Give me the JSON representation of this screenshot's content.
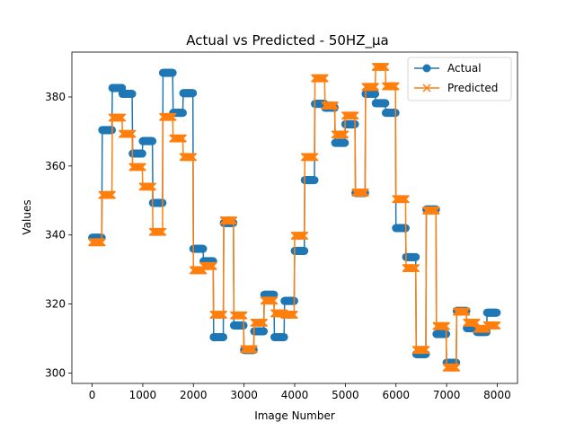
{
  "chart_data": {
    "type": "line",
    "title": "Actual vs Predicted - 50HZ_µa",
    "xlabel": "Image Number",
    "ylabel": "Values",
    "xlim": [
      -400,
      8400
    ],
    "ylim": [
      297,
      393
    ],
    "x_ticks": [
      "0",
      "1000",
      "2000",
      "3000",
      "4000",
      "5000",
      "6000",
      "7000",
      "8000"
    ],
    "y_ticks": [
      "300",
      "320",
      "340",
      "360",
      "380"
    ],
    "legend_position": "upper-right",
    "grid": false,
    "segments": [
      {
        "x0": 0,
        "x1": 200,
        "actual": 339.2,
        "predicted": 337.9
      },
      {
        "x0": 200,
        "x1": 400,
        "actual": 370.4,
        "predicted": 351.6
      },
      {
        "x0": 400,
        "x1": 600,
        "actual": 382.6,
        "predicted": 374.0
      },
      {
        "x0": 600,
        "x1": 800,
        "actual": 380.9,
        "predicted": 369.3
      },
      {
        "x0": 800,
        "x1": 1000,
        "actual": 363.6,
        "predicted": 359.7
      },
      {
        "x0": 1000,
        "x1": 1200,
        "actual": 367.2,
        "predicted": 354.0
      },
      {
        "x0": 1200,
        "x1": 1400,
        "actual": 349.3,
        "predicted": 340.9
      },
      {
        "x0": 1400,
        "x1": 1600,
        "actual": 387.0,
        "predicted": 374.2
      },
      {
        "x0": 1600,
        "x1": 1800,
        "actual": 375.4,
        "predicted": 368.0
      },
      {
        "x0": 1800,
        "x1": 2000,
        "actual": 381.1,
        "predicted": 362.6
      },
      {
        "x0": 2000,
        "x1": 2200,
        "actual": 336.0,
        "predicted": 329.8
      },
      {
        "x0": 2200,
        "x1": 2400,
        "actual": 332.4,
        "predicted": 331.0
      },
      {
        "x0": 2400,
        "x1": 2600,
        "actual": 310.4,
        "predicted": 316.9
      },
      {
        "x0": 2600,
        "x1": 2800,
        "actual": 343.5,
        "predicted": 344.2
      },
      {
        "x0": 2800,
        "x1": 3000,
        "actual": 313.8,
        "predicted": 316.7
      },
      {
        "x0": 3000,
        "x1": 3200,
        "actual": 306.7,
        "predicted": 306.9
      },
      {
        "x0": 3200,
        "x1": 3400,
        "actual": 312.1,
        "predicted": 314.6
      },
      {
        "x0": 3400,
        "x1": 3600,
        "actual": 322.7,
        "predicted": 321.0
      },
      {
        "x0": 3600,
        "x1": 3800,
        "actual": 310.4,
        "predicted": 317.3
      },
      {
        "x0": 3800,
        "x1": 4000,
        "actual": 320.9,
        "predicted": 316.9
      },
      {
        "x0": 4000,
        "x1": 4200,
        "actual": 335.4,
        "predicted": 339.8
      },
      {
        "x0": 4200,
        "x1": 4400,
        "actual": 355.9,
        "predicted": 362.6
      },
      {
        "x0": 4400,
        "x1": 4600,
        "actual": 378.0,
        "predicted": 385.4
      },
      {
        "x0": 4600,
        "x1": 4800,
        "actual": 376.9,
        "predicted": 377.5
      },
      {
        "x0": 4800,
        "x1": 5000,
        "actual": 366.7,
        "predicted": 369.1
      },
      {
        "x0": 5000,
        "x1": 5200,
        "actual": 372.1,
        "predicted": 374.6
      },
      {
        "x0": 5200,
        "x1": 5400,
        "actual": 352.2,
        "predicted": 352.3
      },
      {
        "x0": 5400,
        "x1": 5600,
        "actual": 380.9,
        "predicted": 382.9
      },
      {
        "x0": 5600,
        "x1": 5800,
        "actual": 378.2,
        "predicted": 388.7
      },
      {
        "x0": 5800,
        "x1": 6000,
        "actual": 375.4,
        "predicted": 383.1
      },
      {
        "x0": 6000,
        "x1": 6200,
        "actual": 342.0,
        "predicted": 350.4
      },
      {
        "x0": 6200,
        "x1": 6400,
        "actual": 333.6,
        "predicted": 330.4
      },
      {
        "x0": 6400,
        "x1": 6600,
        "actual": 305.5,
        "predicted": 306.7
      },
      {
        "x0": 6600,
        "x1": 6800,
        "actual": 347.4,
        "predicted": 347.1
      },
      {
        "x0": 6800,
        "x1": 7000,
        "actual": 311.3,
        "predicted": 313.6
      },
      {
        "x0": 7000,
        "x1": 7200,
        "actual": 303.0,
        "predicted": 301.6
      },
      {
        "x0": 7200,
        "x1": 7400,
        "actual": 318.0,
        "predicted": 317.8
      },
      {
        "x0": 7400,
        "x1": 7600,
        "actual": 313.0,
        "predicted": 314.6
      },
      {
        "x0": 7600,
        "x1": 7800,
        "actual": 311.9,
        "predicted": 312.8
      },
      {
        "x0": 7800,
        "x1": 8000,
        "actual": 317.5,
        "predicted": 313.8
      }
    ],
    "series": [
      {
        "name": "Actual",
        "key": "actual",
        "color": "#1f77b4",
        "marker": "circle"
      },
      {
        "name": "Predicted",
        "key": "predicted",
        "color": "#ff7f0e",
        "marker": "x"
      }
    ]
  }
}
